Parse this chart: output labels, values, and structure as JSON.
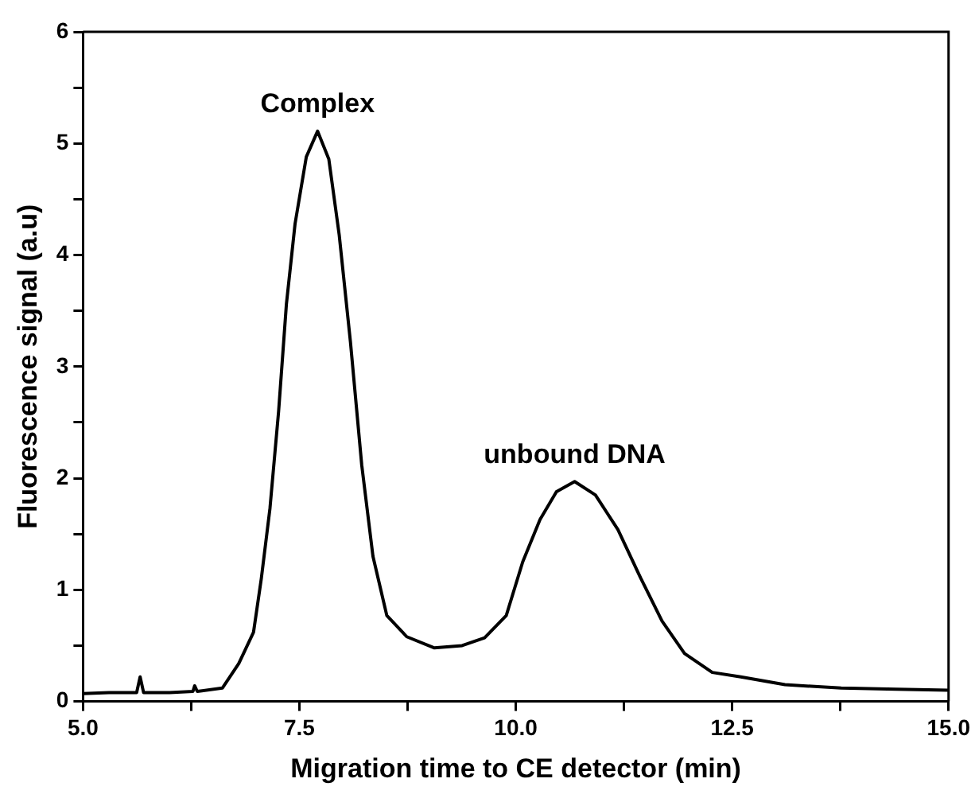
{
  "chart_data": {
    "type": "line",
    "xlabel": "Migration time to CE detector (min)",
    "ylabel": "Fluorescence signal (a.u)",
    "xlim": [
      5,
      15
    ],
    "ylim": [
      0,
      6
    ],
    "xticks": [
      {
        "value": 5,
        "label": "5.0"
      },
      {
        "value": 6.25,
        "label": null
      },
      {
        "value": 7.5,
        "label": "7.5"
      },
      {
        "value": 8.75,
        "label": null
      },
      {
        "value": 10,
        "label": "10.0"
      },
      {
        "value": 11.25,
        "label": null
      },
      {
        "value": 12.5,
        "label": "12.5"
      },
      {
        "value": 13.75,
        "label": null
      },
      {
        "value": 15,
        "label": "15.0"
      }
    ],
    "yticks": [
      0,
      {
        "value": 0.5,
        "label": null
      },
      1,
      {
        "value": 1.5,
        "label": null
      },
      2,
      {
        "value": 2.5,
        "label": null
      },
      3,
      {
        "value": 3.5,
        "label": null
      },
      4,
      {
        "value": 4.5,
        "label": null
      },
      5,
      {
        "value": 5.5,
        "label": null
      },
      6
    ],
    "grid": false,
    "legend": false,
    "marker": "none",
    "line_style": "solid",
    "annotations": [
      {
        "text": "Complex",
        "x": 7.71,
        "y": 5.11
      },
      {
        "text": "unbound DNA",
        "x": 10.68,
        "y": 1.97
      }
    ],
    "series": [
      {
        "color": "#000000",
        "x": [
          5.0,
          5.3,
          5.62,
          5.66,
          5.7,
          6.0,
          6.27,
          6.29,
          6.32,
          6.61,
          6.8,
          6.97,
          7.06,
          7.16,
          7.26,
          7.35,
          7.45,
          7.58,
          7.71,
          7.84,
          7.96,
          8.09,
          8.22,
          8.35,
          8.51,
          8.74,
          9.06,
          9.38,
          9.64,
          9.89,
          10.08,
          10.28,
          10.47,
          10.68,
          10.92,
          11.18,
          11.44,
          11.69,
          11.95,
          12.27,
          12.6,
          13.11,
          13.76,
          14.4,
          15.0
        ],
        "values": [
          0.07,
          0.08,
          0.08,
          0.22,
          0.08,
          0.08,
          0.09,
          0.14,
          0.09,
          0.12,
          0.34,
          0.62,
          1.1,
          1.73,
          2.6,
          3.56,
          4.28,
          4.88,
          5.11,
          4.86,
          4.18,
          3.22,
          2.12,
          1.3,
          0.77,
          0.58,
          0.48,
          0.5,
          0.57,
          0.77,
          1.25,
          1.63,
          1.88,
          1.97,
          1.85,
          1.54,
          1.11,
          0.72,
          0.43,
          0.26,
          0.22,
          0.15,
          0.12,
          0.11,
          0.1
        ]
      }
    ]
  }
}
